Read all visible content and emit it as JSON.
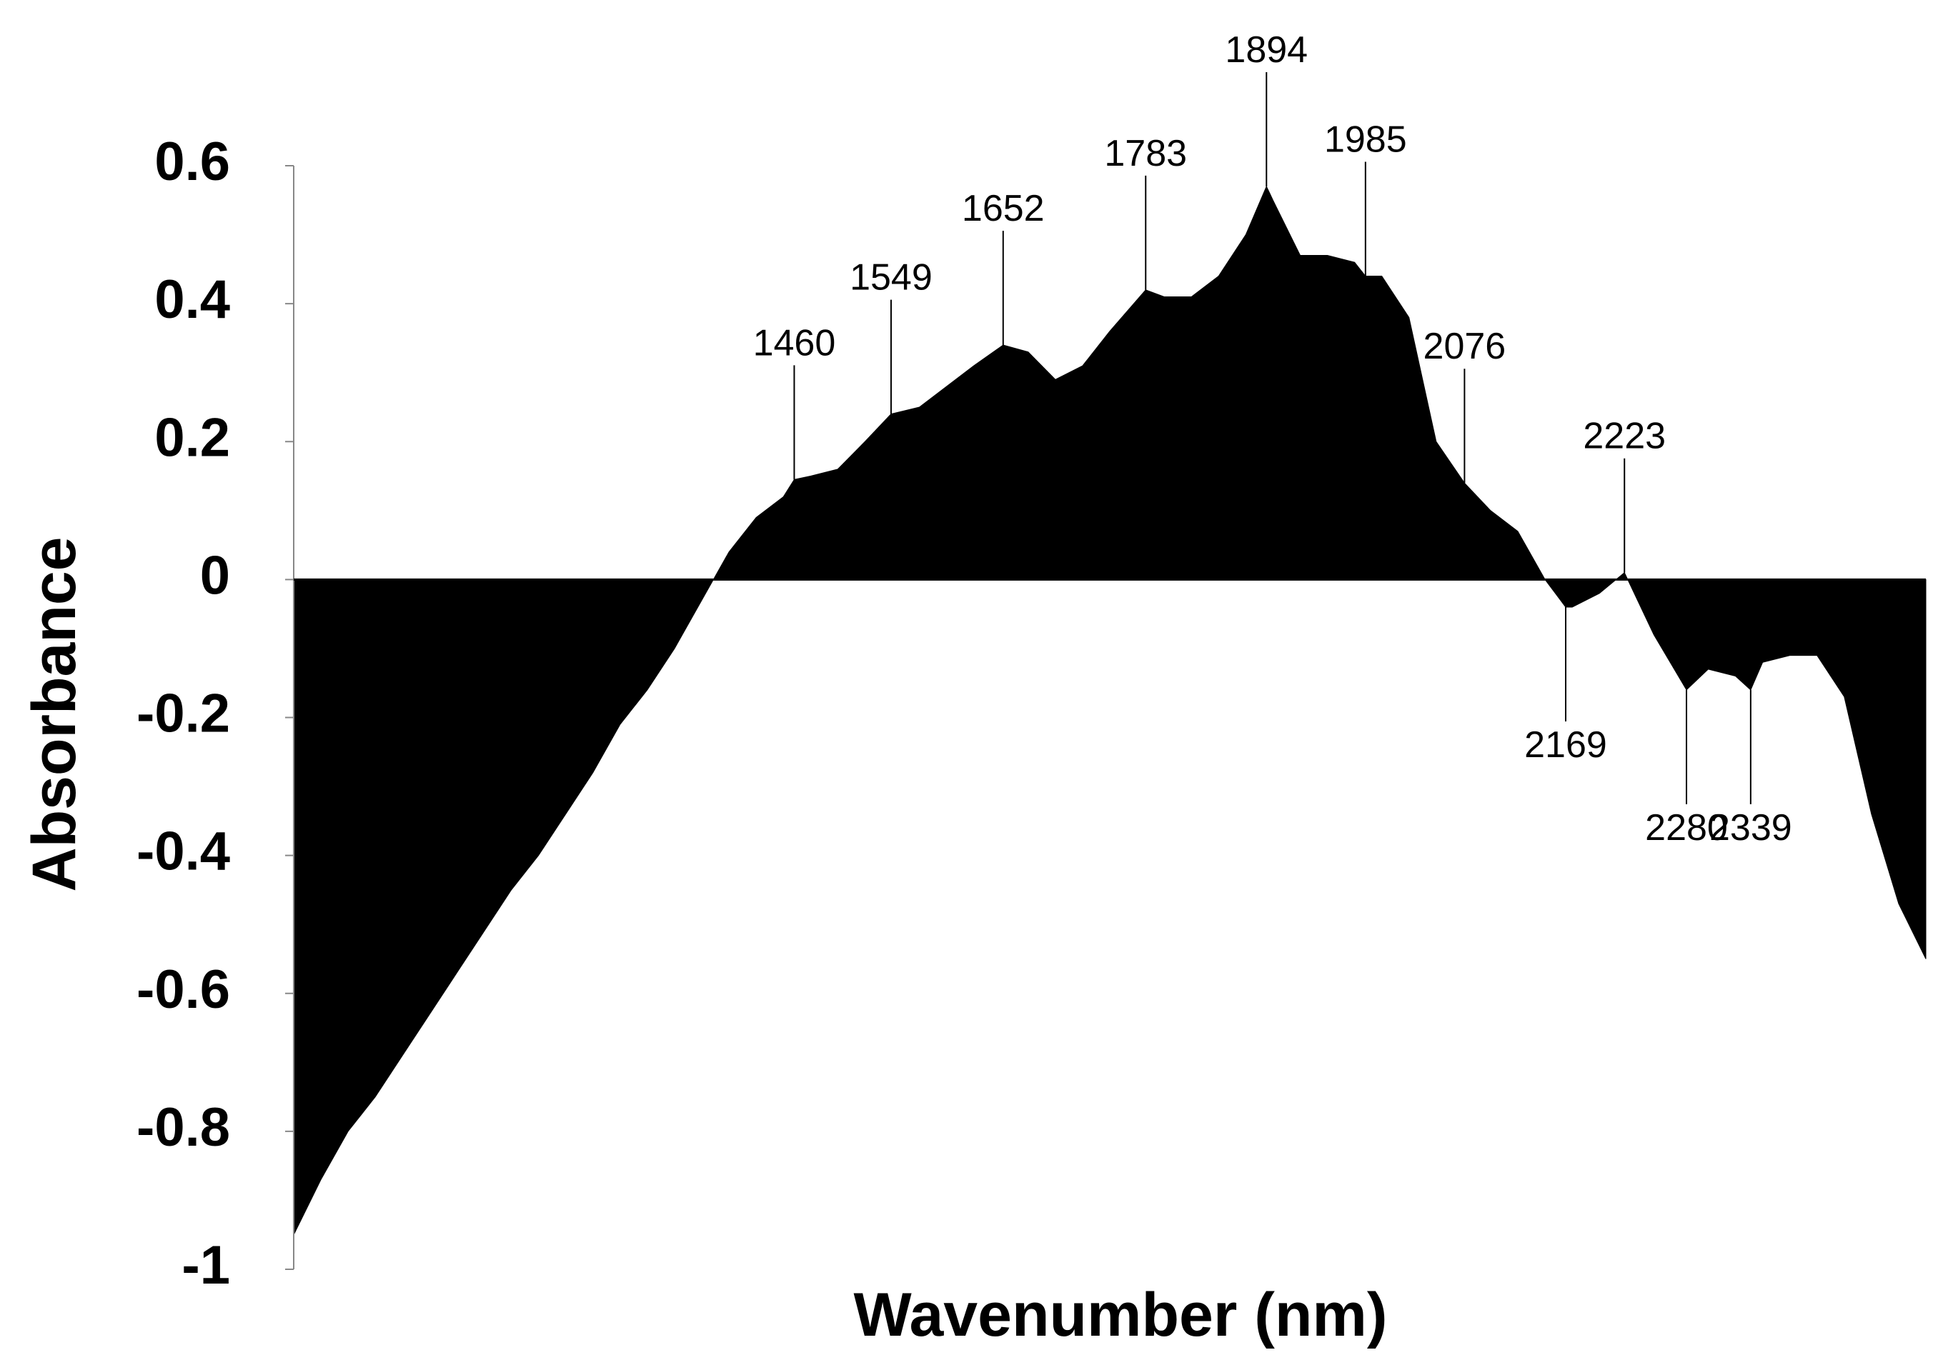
{
  "chart_data": {
    "type": "area",
    "xlabel": "Wavenumber (nm)",
    "ylabel": "Absorbance",
    "x": [
      1000,
      1025,
      1050,
      1075,
      1100,
      1125,
      1150,
      1175,
      1200,
      1225,
      1250,
      1275,
      1300,
      1325,
      1350,
      1375,
      1400,
      1425,
      1450,
      1460,
      1475,
      1500,
      1525,
      1549,
      1575,
      1600,
      1625,
      1652,
      1675,
      1700,
      1725,
      1750,
      1783,
      1800,
      1825,
      1850,
      1875,
      1894,
      1900,
      1925,
      1950,
      1975,
      1985,
      2000,
      2025,
      2050,
      2076,
      2100,
      2125,
      2150,
      2169,
      2175,
      2200,
      2223,
      2250,
      2280,
      2300,
      2325,
      2339,
      2350,
      2375,
      2400,
      2425,
      2450,
      2475,
      2500
    ],
    "values": [
      -0.95,
      -0.87,
      -0.8,
      -0.75,
      -0.69,
      -0.63,
      -0.57,
      -0.51,
      -0.45,
      -0.4,
      -0.34,
      -0.28,
      -0.21,
      -0.16,
      -0.1,
      -0.03,
      0.04,
      0.09,
      0.12,
      0.145,
      0.15,
      0.16,
      0.2,
      0.24,
      0.25,
      0.28,
      0.31,
      0.34,
      0.33,
      0.29,
      0.31,
      0.36,
      0.42,
      0.41,
      0.41,
      0.44,
      0.5,
      0.57,
      0.55,
      0.47,
      0.47,
      0.46,
      0.44,
      0.44,
      0.38,
      0.2,
      0.14,
      0.1,
      0.07,
      0.0,
      -0.04,
      -0.04,
      -0.02,
      0.01,
      -0.08,
      -0.16,
      -0.13,
      -0.14,
      -0.16,
      -0.12,
      -0.11,
      -0.11,
      -0.17,
      -0.34,
      -0.47,
      -0.55
    ],
    "color": "#000000",
    "xlim": [
      1000,
      2500
    ],
    "ylim": [
      -1,
      0.6
    ],
    "yticks": [
      0.6,
      0.4,
      0.2,
      0,
      -0.2,
      -0.4,
      -0.6,
      -0.8,
      -1
    ],
    "annotations": [
      1460,
      1549,
      1652,
      1783,
      1894,
      1985,
      2076,
      2169,
      2223,
      2280,
      2339
    ]
  }
}
